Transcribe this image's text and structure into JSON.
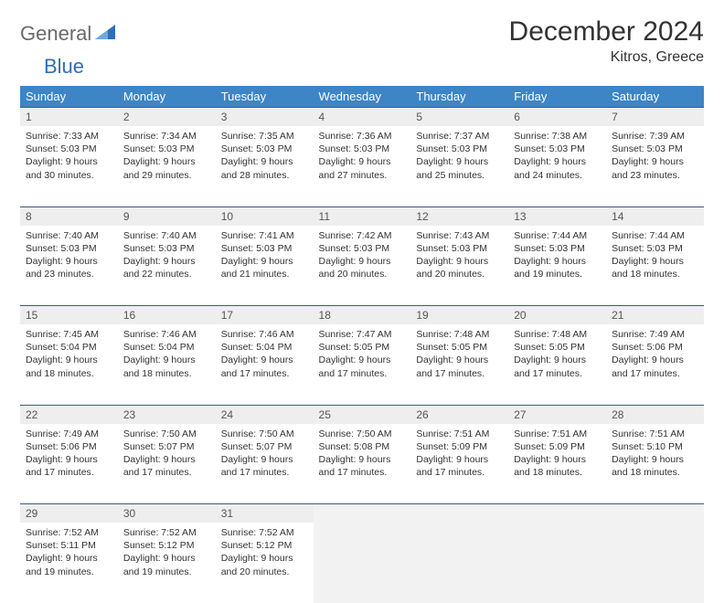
{
  "brand": {
    "part1": "General",
    "part2": "Blue"
  },
  "title": "December 2024",
  "location": "Kitros, Greece",
  "colors": {
    "header_bg": "#3d85c6",
    "header_fg": "#ffffff",
    "daynum_bg": "#eeeeee",
    "border": "#3d5a80",
    "brand_gray": "#6a6a6a",
    "brand_blue": "#2d6fb4"
  },
  "weekdays": [
    "Sunday",
    "Monday",
    "Tuesday",
    "Wednesday",
    "Thursday",
    "Friday",
    "Saturday"
  ],
  "weeks": [
    [
      {
        "n": "1",
        "sunrise": "Sunrise: 7:33 AM",
        "sunset": "Sunset: 5:03 PM",
        "day1": "Daylight: 9 hours",
        "day2": "and 30 minutes."
      },
      {
        "n": "2",
        "sunrise": "Sunrise: 7:34 AM",
        "sunset": "Sunset: 5:03 PM",
        "day1": "Daylight: 9 hours",
        "day2": "and 29 minutes."
      },
      {
        "n": "3",
        "sunrise": "Sunrise: 7:35 AM",
        "sunset": "Sunset: 5:03 PM",
        "day1": "Daylight: 9 hours",
        "day2": "and 28 minutes."
      },
      {
        "n": "4",
        "sunrise": "Sunrise: 7:36 AM",
        "sunset": "Sunset: 5:03 PM",
        "day1": "Daylight: 9 hours",
        "day2": "and 27 minutes."
      },
      {
        "n": "5",
        "sunrise": "Sunrise: 7:37 AM",
        "sunset": "Sunset: 5:03 PM",
        "day1": "Daylight: 9 hours",
        "day2": "and 25 minutes."
      },
      {
        "n": "6",
        "sunrise": "Sunrise: 7:38 AM",
        "sunset": "Sunset: 5:03 PM",
        "day1": "Daylight: 9 hours",
        "day2": "and 24 minutes."
      },
      {
        "n": "7",
        "sunrise": "Sunrise: 7:39 AM",
        "sunset": "Sunset: 5:03 PM",
        "day1": "Daylight: 9 hours",
        "day2": "and 23 minutes."
      }
    ],
    [
      {
        "n": "8",
        "sunrise": "Sunrise: 7:40 AM",
        "sunset": "Sunset: 5:03 PM",
        "day1": "Daylight: 9 hours",
        "day2": "and 23 minutes."
      },
      {
        "n": "9",
        "sunrise": "Sunrise: 7:40 AM",
        "sunset": "Sunset: 5:03 PM",
        "day1": "Daylight: 9 hours",
        "day2": "and 22 minutes."
      },
      {
        "n": "10",
        "sunrise": "Sunrise: 7:41 AM",
        "sunset": "Sunset: 5:03 PM",
        "day1": "Daylight: 9 hours",
        "day2": "and 21 minutes."
      },
      {
        "n": "11",
        "sunrise": "Sunrise: 7:42 AM",
        "sunset": "Sunset: 5:03 PM",
        "day1": "Daylight: 9 hours",
        "day2": "and 20 minutes."
      },
      {
        "n": "12",
        "sunrise": "Sunrise: 7:43 AM",
        "sunset": "Sunset: 5:03 PM",
        "day1": "Daylight: 9 hours",
        "day2": "and 20 minutes."
      },
      {
        "n": "13",
        "sunrise": "Sunrise: 7:44 AM",
        "sunset": "Sunset: 5:03 PM",
        "day1": "Daylight: 9 hours",
        "day2": "and 19 minutes."
      },
      {
        "n": "14",
        "sunrise": "Sunrise: 7:44 AM",
        "sunset": "Sunset: 5:03 PM",
        "day1": "Daylight: 9 hours",
        "day2": "and 18 minutes."
      }
    ],
    [
      {
        "n": "15",
        "sunrise": "Sunrise: 7:45 AM",
        "sunset": "Sunset: 5:04 PM",
        "day1": "Daylight: 9 hours",
        "day2": "and 18 minutes."
      },
      {
        "n": "16",
        "sunrise": "Sunrise: 7:46 AM",
        "sunset": "Sunset: 5:04 PM",
        "day1": "Daylight: 9 hours",
        "day2": "and 18 minutes."
      },
      {
        "n": "17",
        "sunrise": "Sunrise: 7:46 AM",
        "sunset": "Sunset: 5:04 PM",
        "day1": "Daylight: 9 hours",
        "day2": "and 17 minutes."
      },
      {
        "n": "18",
        "sunrise": "Sunrise: 7:47 AM",
        "sunset": "Sunset: 5:05 PM",
        "day1": "Daylight: 9 hours",
        "day2": "and 17 minutes."
      },
      {
        "n": "19",
        "sunrise": "Sunrise: 7:48 AM",
        "sunset": "Sunset: 5:05 PM",
        "day1": "Daylight: 9 hours",
        "day2": "and 17 minutes."
      },
      {
        "n": "20",
        "sunrise": "Sunrise: 7:48 AM",
        "sunset": "Sunset: 5:05 PM",
        "day1": "Daylight: 9 hours",
        "day2": "and 17 minutes."
      },
      {
        "n": "21",
        "sunrise": "Sunrise: 7:49 AM",
        "sunset": "Sunset: 5:06 PM",
        "day1": "Daylight: 9 hours",
        "day2": "and 17 minutes."
      }
    ],
    [
      {
        "n": "22",
        "sunrise": "Sunrise: 7:49 AM",
        "sunset": "Sunset: 5:06 PM",
        "day1": "Daylight: 9 hours",
        "day2": "and 17 minutes."
      },
      {
        "n": "23",
        "sunrise": "Sunrise: 7:50 AM",
        "sunset": "Sunset: 5:07 PM",
        "day1": "Daylight: 9 hours",
        "day2": "and 17 minutes."
      },
      {
        "n": "24",
        "sunrise": "Sunrise: 7:50 AM",
        "sunset": "Sunset: 5:07 PM",
        "day1": "Daylight: 9 hours",
        "day2": "and 17 minutes."
      },
      {
        "n": "25",
        "sunrise": "Sunrise: 7:50 AM",
        "sunset": "Sunset: 5:08 PM",
        "day1": "Daylight: 9 hours",
        "day2": "and 17 minutes."
      },
      {
        "n": "26",
        "sunrise": "Sunrise: 7:51 AM",
        "sunset": "Sunset: 5:09 PM",
        "day1": "Daylight: 9 hours",
        "day2": "and 17 minutes."
      },
      {
        "n": "27",
        "sunrise": "Sunrise: 7:51 AM",
        "sunset": "Sunset: 5:09 PM",
        "day1": "Daylight: 9 hours",
        "day2": "and 18 minutes."
      },
      {
        "n": "28",
        "sunrise": "Sunrise: 7:51 AM",
        "sunset": "Sunset: 5:10 PM",
        "day1": "Daylight: 9 hours",
        "day2": "and 18 minutes."
      }
    ],
    [
      {
        "n": "29",
        "sunrise": "Sunrise: 7:52 AM",
        "sunset": "Sunset: 5:11 PM",
        "day1": "Daylight: 9 hours",
        "day2": "and 19 minutes."
      },
      {
        "n": "30",
        "sunrise": "Sunrise: 7:52 AM",
        "sunset": "Sunset: 5:12 PM",
        "day1": "Daylight: 9 hours",
        "day2": "and 19 minutes."
      },
      {
        "n": "31",
        "sunrise": "Sunrise: 7:52 AM",
        "sunset": "Sunset: 5:12 PM",
        "day1": "Daylight: 9 hours",
        "day2": "and 20 minutes."
      },
      {
        "n": "",
        "empty": true
      },
      {
        "n": "",
        "empty": true
      },
      {
        "n": "",
        "empty": true
      },
      {
        "n": "",
        "empty": true
      }
    ]
  ]
}
